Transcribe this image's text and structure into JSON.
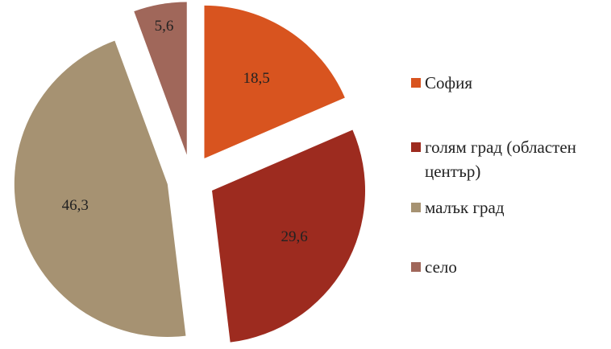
{
  "chart_data": {
    "type": "pie",
    "categories": [
      "София",
      "голям град (областен център)",
      "малък град",
      "село"
    ],
    "values": [
      18.5,
      29.6,
      46.3,
      5.6
    ],
    "value_labels": [
      "18,5",
      "29,6",
      "46,3",
      "5,6"
    ],
    "colors": [
      "#d8541f",
      "#9d2b1f",
      "#a69272",
      "#a0675a"
    ],
    "legend": "right"
  }
}
